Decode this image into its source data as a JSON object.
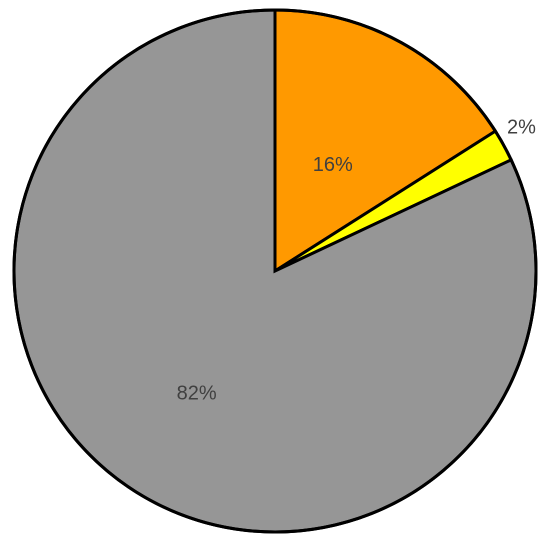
{
  "chart_data": {
    "type": "pie",
    "title": "",
    "values": [
      16,
      2,
      82
    ],
    "labels": [
      "16%",
      "2%",
      "82%"
    ],
    "colors": [
      "#ff9900",
      "#ffff00",
      "#969696"
    ],
    "start_angle_deg": 0,
    "direction": "clockwise",
    "legend": "none",
    "label_color": "#404040",
    "border_color": "#000000"
  }
}
